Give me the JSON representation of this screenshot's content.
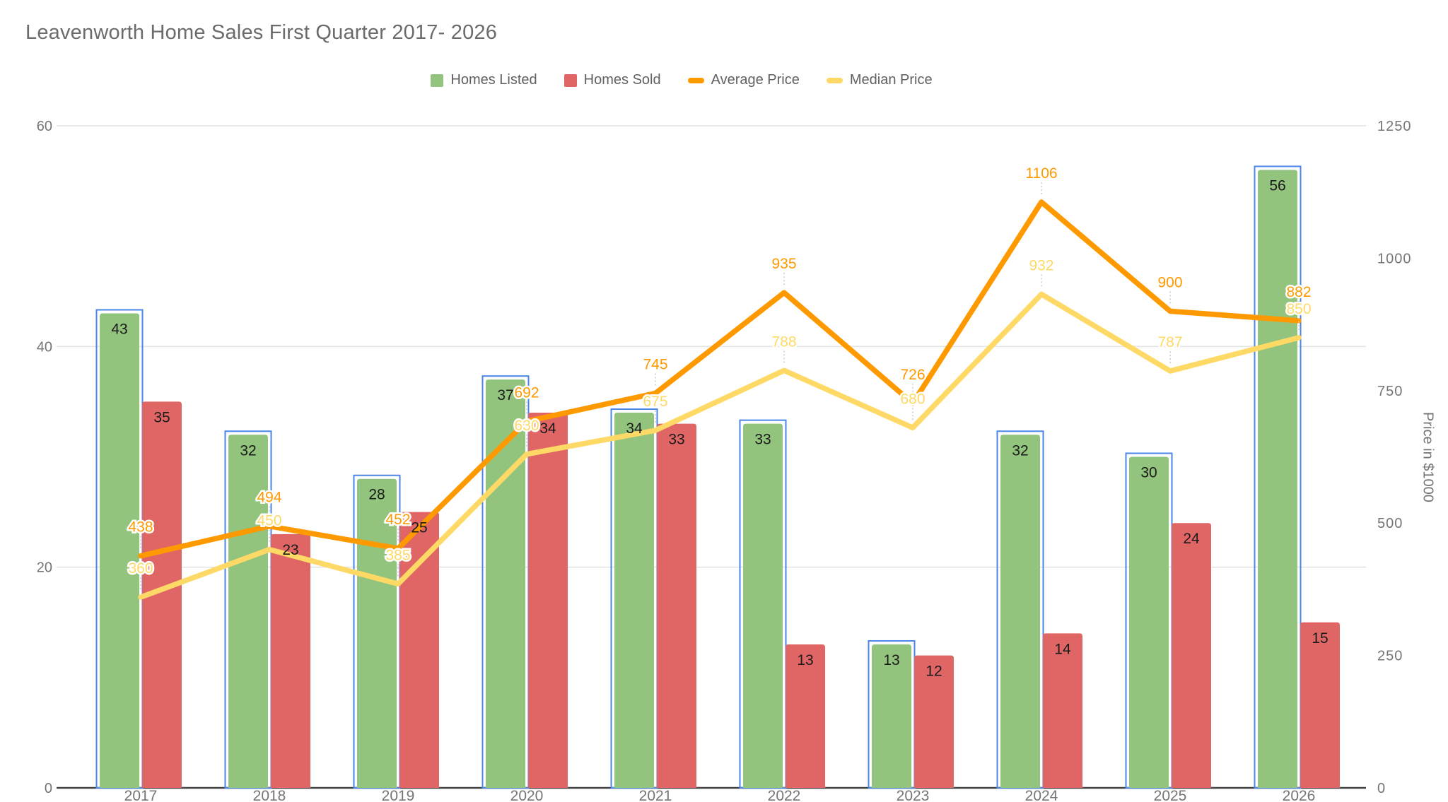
{
  "title": "Leavenworth Home Sales First Quarter 2017- 2026",
  "chart_data": {
    "type": "combo",
    "title": "Leavenworth Home Sales First Quarter 2017- 2026",
    "categories": [
      "2017",
      "2018",
      "2019",
      "2020",
      "2021",
      "2022",
      "2023",
      "2024",
      "2025",
      "2026"
    ],
    "series": [
      {
        "name": "Homes Listed",
        "type": "bar",
        "axis": "left",
        "color": "#93c47d",
        "selected": true,
        "selection_color": "#4a86e8",
        "values": [
          43,
          32,
          28,
          37,
          34,
          33,
          13,
          32,
          30,
          56
        ]
      },
      {
        "name": "Homes Sold",
        "type": "bar",
        "axis": "left",
        "color": "#e06666",
        "values": [
          35,
          23,
          25,
          34,
          33,
          13,
          12,
          14,
          24,
          15
        ]
      },
      {
        "name": "Average Price",
        "type": "line",
        "axis": "right",
        "color": "#ff9900",
        "values": [
          438,
          494,
          452,
          692,
          745,
          935,
          726,
          1106,
          900,
          882
        ]
      },
      {
        "name": "Median Price",
        "type": "line",
        "axis": "right",
        "color": "#ffd966",
        "values": [
          360,
          450,
          385,
          630,
          675,
          788,
          680,
          932,
          787,
          850
        ]
      }
    ],
    "axes": {
      "left": {
        "min": 0,
        "max": 60,
        "ticks": [
          0,
          20,
          40,
          60
        ]
      },
      "right": {
        "min": 0,
        "max": 1250,
        "ticks": [
          0,
          250,
          500,
          750,
          1000,
          1250
        ],
        "label": "Price in $1000"
      }
    },
    "legend_position": "top",
    "grid": "horizontal-at-left-ticks",
    "data_labels": true
  }
}
